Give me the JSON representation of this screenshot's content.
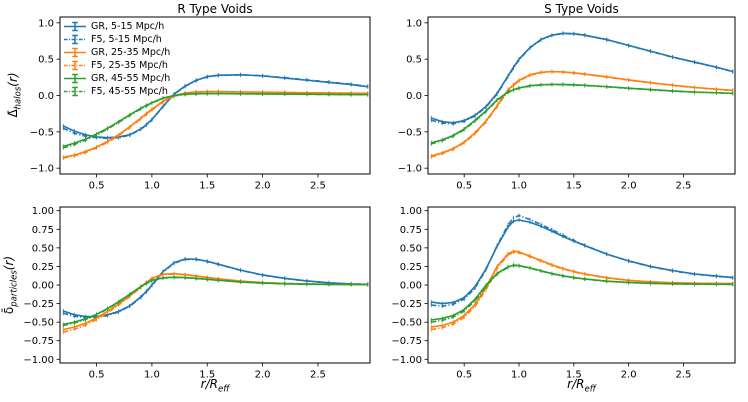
{
  "figure": {
    "titles": {
      "left": "R Type Voids",
      "right": "S Type Voids"
    },
    "colors": {
      "blue": "#1f77b4",
      "orange": "#ff7f0e",
      "green": "#2ca02c",
      "text": "#000000",
      "spine": "#000000"
    },
    "axis_labels": {
      "halos": {
        "prefix": "Δ̄",
        "sub": "halos",
        "suffix": "(r)"
      },
      "particles": {
        "prefix": "δ̄",
        "sub": "particles",
        "suffix": "(r)"
      },
      "x": {
        "prefix": "r/R",
        "sub": "eff"
      }
    },
    "legend": {
      "entries": [
        {
          "label": "GR, 5-15 Mpc/h",
          "color": "#1f77b4",
          "dashed": false
        },
        {
          "label": "F5, 5-15 Mpc/h",
          "color": "#1f77b4",
          "dashed": true
        },
        {
          "label": "GR, 25-35 Mpc/h",
          "color": "#ff7f0e",
          "dashed": false
        },
        {
          "label": "F5, 25-35 Mpc/h",
          "color": "#ff7f0e",
          "dashed": true
        },
        {
          "label": "GR, 45-55 Mpc/h",
          "color": "#2ca02c",
          "dashed": false
        },
        {
          "label": "F5, 45-55 Mpc/h",
          "color": "#2ca02c",
          "dashed": true
        }
      ]
    }
  },
  "chart_data": [
    {
      "id": "r-halos",
      "type": "line",
      "title": "R Type Voids",
      "xlabel": "",
      "ylabel": "Delta-bar_halos(r)",
      "xlim": [
        0.17,
        2.97
      ],
      "ylim": [
        -1.08,
        1.08
      ],
      "xticks": [
        0.5,
        1.0,
        1.5,
        2.0,
        2.5
      ],
      "xtick_labels": [
        "0.5",
        "1.0",
        "1.5",
        "2.0",
        "2.5"
      ],
      "yticks": [
        -1.0,
        -0.5,
        0.0,
        0.5,
        1.0
      ],
      "ytick_labels": [
        "−1.0",
        "−0.5",
        "0.0",
        "0.5",
        "1.0"
      ],
      "x": [
        0.2,
        0.3,
        0.4,
        0.5,
        0.6,
        0.7,
        0.8,
        0.9,
        0.95,
        1.0,
        1.1,
        1.2,
        1.3,
        1.4,
        1.5,
        1.6,
        1.8,
        2.0,
        2.2,
        2.4,
        2.6,
        2.8,
        2.95
      ],
      "series": [
        {
          "name": "GR, 5-15 Mpc/h",
          "color": "#1f77b4",
          "style": "solid",
          "values": [
            -0.42,
            -0.49,
            -0.54,
            -0.57,
            -0.58,
            -0.57,
            -0.54,
            -0.46,
            -0.4,
            -0.33,
            -0.15,
            0.02,
            0.13,
            0.21,
            0.26,
            0.28,
            0.285,
            0.27,
            0.24,
            0.21,
            0.18,
            0.15,
            0.12
          ]
        },
        {
          "name": "F5, 5-15 Mpc/h",
          "color": "#1f77b4",
          "style": "dashdot",
          "values": [
            -0.45,
            -0.52,
            -0.56,
            -0.58,
            -0.59,
            -0.58,
            -0.545,
            -0.465,
            -0.405,
            -0.335,
            -0.155,
            0.015,
            0.125,
            0.205,
            0.255,
            0.275,
            0.285,
            0.272,
            0.245,
            0.215,
            0.185,
            0.155,
            0.125
          ]
        },
        {
          "name": "GR, 25-35 Mpc/h",
          "color": "#ff7f0e",
          "style": "solid",
          "values": [
            -0.85,
            -0.82,
            -0.77,
            -0.71,
            -0.63,
            -0.54,
            -0.43,
            -0.31,
            -0.25,
            -0.19,
            -0.08,
            0.0,
            0.035,
            0.05,
            0.055,
            0.055,
            0.05,
            0.045,
            0.042,
            0.038,
            0.035,
            0.032,
            0.03
          ]
        },
        {
          "name": "F5, 25-35 Mpc/h",
          "color": "#ff7f0e",
          "style": "dashdot",
          "values": [
            -0.86,
            -0.83,
            -0.785,
            -0.72,
            -0.645,
            -0.55,
            -0.44,
            -0.32,
            -0.26,
            -0.2,
            -0.09,
            -0.01,
            0.03,
            0.045,
            0.05,
            0.05,
            0.047,
            0.043,
            0.04,
            0.036,
            0.033,
            0.031,
            0.029
          ]
        },
        {
          "name": "GR, 45-55 Mpc/h",
          "color": "#2ca02c",
          "style": "solid",
          "values": [
            -0.7,
            -0.655,
            -0.6,
            -0.53,
            -0.45,
            -0.36,
            -0.265,
            -0.175,
            -0.135,
            -0.1,
            -0.035,
            0.0,
            0.018,
            0.025,
            0.027,
            0.027,
            0.025,
            0.022,
            0.02,
            0.018,
            0.015,
            0.013,
            0.012
          ]
        },
        {
          "name": "F5, 45-55 Mpc/h",
          "color": "#2ca02c",
          "style": "dashdot",
          "values": [
            -0.72,
            -0.675,
            -0.615,
            -0.545,
            -0.46,
            -0.37,
            -0.275,
            -0.185,
            -0.145,
            -0.105,
            -0.04,
            -0.005,
            0.014,
            0.022,
            0.025,
            0.025,
            0.023,
            0.021,
            0.019,
            0.016,
            0.014,
            0.012,
            0.011
          ]
        }
      ]
    },
    {
      "id": "s-halos",
      "type": "line",
      "title": "S Type Voids",
      "xlabel": "",
      "ylabel": "Delta-bar_halos(r)",
      "xlim": [
        0.17,
        2.97
      ],
      "ylim": [
        -1.08,
        1.08
      ],
      "xticks": [
        0.5,
        1.0,
        1.5,
        2.0,
        2.5
      ],
      "xtick_labels": [
        "0.5",
        "1.0",
        "1.5",
        "2.0",
        "2.5"
      ],
      "yticks": [
        -1.0,
        -0.5,
        0.0,
        0.5,
        1.0
      ],
      "ytick_labels": [
        "−1.0",
        "−0.5",
        "0.0",
        "0.5",
        "1.0"
      ],
      "x": [
        0.2,
        0.3,
        0.4,
        0.5,
        0.6,
        0.7,
        0.8,
        0.9,
        0.95,
        1.0,
        1.1,
        1.2,
        1.3,
        1.4,
        1.5,
        1.6,
        1.8,
        2.0,
        2.2,
        2.4,
        2.6,
        2.8,
        2.95
      ],
      "series": [
        {
          "name": "GR, 5-15 Mpc/h",
          "color": "#1f77b4",
          "style": "solid",
          "values": [
            -0.31,
            -0.36,
            -0.375,
            -0.345,
            -0.27,
            -0.15,
            0.03,
            0.27,
            0.39,
            0.5,
            0.66,
            0.77,
            0.83,
            0.855,
            0.85,
            0.83,
            0.77,
            0.69,
            0.61,
            0.53,
            0.46,
            0.39,
            0.33
          ]
        },
        {
          "name": "F5, 5-15 Mpc/h",
          "color": "#1f77b4",
          "style": "dashdot",
          "values": [
            -0.34,
            -0.38,
            -0.39,
            -0.355,
            -0.28,
            -0.16,
            0.02,
            0.26,
            0.38,
            0.49,
            0.655,
            0.765,
            0.828,
            0.852,
            0.848,
            0.828,
            0.767,
            0.687,
            0.607,
            0.527,
            0.457,
            0.387,
            0.327
          ]
        },
        {
          "name": "GR, 25-35 Mpc/h",
          "color": "#ff7f0e",
          "style": "solid",
          "values": [
            -0.83,
            -0.79,
            -0.73,
            -0.64,
            -0.51,
            -0.35,
            -0.14,
            0.08,
            0.15,
            0.21,
            0.285,
            0.32,
            0.33,
            0.325,
            0.312,
            0.295,
            0.257,
            0.215,
            0.177,
            0.142,
            0.112,
            0.087,
            0.072
          ]
        },
        {
          "name": "F5, 25-35 Mpc/h",
          "color": "#ff7f0e",
          "style": "dashdot",
          "values": [
            -0.845,
            -0.8,
            -0.74,
            -0.65,
            -0.525,
            -0.365,
            -0.155,
            0.065,
            0.138,
            0.2,
            0.278,
            0.315,
            0.327,
            0.322,
            0.309,
            0.292,
            0.254,
            0.212,
            0.174,
            0.139,
            0.109,
            0.084,
            0.069
          ]
        },
        {
          "name": "GR, 45-55 Mpc/h",
          "color": "#2ca02c",
          "style": "solid",
          "values": [
            -0.65,
            -0.61,
            -0.55,
            -0.46,
            -0.34,
            -0.21,
            -0.06,
            0.05,
            0.08,
            0.105,
            0.135,
            0.148,
            0.153,
            0.152,
            0.147,
            0.14,
            0.122,
            0.101,
            0.081,
            0.063,
            0.048,
            0.038,
            0.031
          ]
        },
        {
          "name": "F5, 45-55 Mpc/h",
          "color": "#2ca02c",
          "style": "dashdot",
          "values": [
            -0.665,
            -0.622,
            -0.56,
            -0.47,
            -0.35,
            -0.22,
            -0.07,
            0.042,
            0.073,
            0.098,
            0.13,
            0.144,
            0.15,
            0.149,
            0.144,
            0.138,
            0.119,
            0.098,
            0.078,
            0.06,
            0.046,
            0.036,
            0.029
          ]
        }
      ]
    },
    {
      "id": "r-particles",
      "type": "line",
      "title": "",
      "xlabel": "r/R_eff",
      "ylabel": "delta-bar_particles(r)",
      "xlim": [
        0.17,
        2.97
      ],
      "ylim": [
        -1.05,
        1.05
      ],
      "xticks": [
        0.5,
        1.0,
        1.5,
        2.0,
        2.5
      ],
      "xtick_labels": [
        "0.5",
        "1.0",
        "1.5",
        "2.0",
        "2.5"
      ],
      "yticks": [
        -1.0,
        -0.75,
        -0.5,
        -0.25,
        0.0,
        0.25,
        0.5,
        0.75,
        1.0
      ],
      "ytick_labels": [
        "−1.00",
        "−0.75",
        "−0.50",
        "−0.25",
        "0.00",
        "0.25",
        "0.50",
        "0.75",
        "1.00"
      ],
      "x": [
        0.2,
        0.3,
        0.4,
        0.5,
        0.6,
        0.7,
        0.8,
        0.9,
        0.95,
        1.0,
        1.1,
        1.2,
        1.3,
        1.4,
        1.5,
        1.6,
        1.8,
        2.0,
        2.2,
        2.4,
        2.6,
        2.8,
        2.95
      ],
      "series": [
        {
          "name": "GR, 5-15 Mpc/h",
          "color": "#1f77b4",
          "style": "solid",
          "values": [
            -0.35,
            -0.4,
            -0.425,
            -0.425,
            -0.4,
            -0.355,
            -0.28,
            -0.16,
            -0.085,
            0.0,
            0.18,
            0.3,
            0.35,
            0.348,
            0.32,
            0.28,
            0.2,
            0.135,
            0.09,
            0.055,
            0.03,
            0.015,
            0.01
          ]
        },
        {
          "name": "F5, 5-15 Mpc/h",
          "color": "#1f77b4",
          "style": "dashdot",
          "values": [
            -0.38,
            -0.42,
            -0.44,
            -0.437,
            -0.41,
            -0.362,
            -0.287,
            -0.168,
            -0.093,
            -0.007,
            0.174,
            0.293,
            0.344,
            0.343,
            0.316,
            0.277,
            0.198,
            0.133,
            0.088,
            0.053,
            0.029,
            0.014,
            0.009
          ]
        },
        {
          "name": "GR, 25-35 Mpc/h",
          "color": "#ff7f0e",
          "style": "solid",
          "values": [
            -0.6,
            -0.565,
            -0.515,
            -0.445,
            -0.355,
            -0.255,
            -0.145,
            -0.025,
            0.035,
            0.09,
            0.145,
            0.152,
            0.14,
            0.122,
            0.102,
            0.084,
            0.053,
            0.033,
            0.021,
            0.014,
            0.01,
            0.008,
            0.007
          ]
        },
        {
          "name": "F5, 25-35 Mpc/h",
          "color": "#ff7f0e",
          "style": "dashdot",
          "values": [
            -0.635,
            -0.595,
            -0.54,
            -0.465,
            -0.372,
            -0.268,
            -0.155,
            -0.034,
            0.028,
            0.084,
            0.14,
            0.148,
            0.137,
            0.119,
            0.099,
            0.081,
            0.051,
            0.031,
            0.02,
            0.013,
            0.009,
            0.008,
            0.007
          ]
        },
        {
          "name": "GR, 45-55 Mpc/h",
          "color": "#2ca02c",
          "style": "solid",
          "values": [
            -0.53,
            -0.5,
            -0.455,
            -0.395,
            -0.315,
            -0.225,
            -0.125,
            -0.02,
            0.025,
            0.062,
            0.097,
            0.105,
            0.1,
            0.09,
            0.077,
            0.064,
            0.041,
            0.026,
            0.017,
            0.011,
            0.008,
            0.007,
            0.006
          ]
        },
        {
          "name": "F5, 45-55 Mpc/h",
          "color": "#2ca02c",
          "style": "dashdot",
          "values": [
            -0.545,
            -0.512,
            -0.465,
            -0.403,
            -0.322,
            -0.23,
            -0.13,
            -0.026,
            0.02,
            0.057,
            0.093,
            0.102,
            0.097,
            0.087,
            0.075,
            0.062,
            0.04,
            0.025,
            0.016,
            0.01,
            0.008,
            0.007,
            0.006
          ]
        }
      ]
    },
    {
      "id": "s-particles",
      "type": "line",
      "title": "",
      "xlabel": "r/R_eff",
      "ylabel": "delta-bar_particles(r)",
      "xlim": [
        0.17,
        2.97
      ],
      "ylim": [
        -1.05,
        1.05
      ],
      "xticks": [
        0.5,
        1.0,
        1.5,
        2.0,
        2.5
      ],
      "xtick_labels": [
        "0.5",
        "1.0",
        "1.5",
        "2.0",
        "2.5"
      ],
      "yticks": [
        -1.0,
        -0.75,
        -0.5,
        -0.25,
        0.0,
        0.25,
        0.5,
        0.75,
        1.0
      ],
      "ytick_labels": [
        "−1.00",
        "−0.75",
        "−0.50",
        "−0.25",
        "0.00",
        "0.25",
        "0.50",
        "0.75",
        "1.00"
      ],
      "x": [
        0.2,
        0.3,
        0.4,
        0.5,
        0.6,
        0.7,
        0.8,
        0.9,
        0.95,
        1.0,
        1.1,
        1.2,
        1.3,
        1.4,
        1.5,
        1.6,
        1.8,
        2.0,
        2.2,
        2.4,
        2.6,
        2.8,
        2.95
      ],
      "series": [
        {
          "name": "GR, 5-15 Mpc/h",
          "color": "#1f77b4",
          "style": "solid",
          "values": [
            -0.23,
            -0.25,
            -0.235,
            -0.17,
            -0.02,
            0.22,
            0.52,
            0.78,
            0.86,
            0.875,
            0.845,
            0.79,
            0.725,
            0.655,
            0.59,
            0.53,
            0.415,
            0.325,
            0.25,
            0.195,
            0.15,
            0.12,
            0.1
          ]
        },
        {
          "name": "F5, 5-15 Mpc/h",
          "color": "#1f77b4",
          "style": "dashdot",
          "values": [
            -0.27,
            -0.285,
            -0.26,
            -0.19,
            -0.04,
            0.21,
            0.53,
            0.81,
            0.905,
            0.935,
            0.88,
            0.815,
            0.745,
            0.672,
            0.6,
            0.535,
            0.416,
            0.322,
            0.247,
            0.19,
            0.146,
            0.116,
            0.098
          ]
        },
        {
          "name": "GR, 25-35 Mpc/h",
          "color": "#ff7f0e",
          "style": "solid",
          "values": [
            -0.565,
            -0.545,
            -0.5,
            -0.41,
            -0.26,
            -0.03,
            0.25,
            0.42,
            0.455,
            0.445,
            0.39,
            0.33,
            0.272,
            0.222,
            0.182,
            0.15,
            0.098,
            0.063,
            0.043,
            0.031,
            0.025,
            0.021,
            0.019
          ]
        },
        {
          "name": "F5, 25-35 Mpc/h",
          "color": "#ff7f0e",
          "style": "dashdot",
          "values": [
            -0.6,
            -0.575,
            -0.525,
            -0.435,
            -0.285,
            -0.06,
            0.225,
            0.405,
            0.443,
            0.435,
            0.382,
            0.322,
            0.265,
            0.216,
            0.177,
            0.145,
            0.094,
            0.06,
            0.041,
            0.029,
            0.023,
            0.02,
            0.018
          ]
        },
        {
          "name": "GR, 45-55 Mpc/h",
          "color": "#2ca02c",
          "style": "solid",
          "values": [
            -0.47,
            -0.45,
            -0.41,
            -0.33,
            -0.19,
            0.0,
            0.155,
            0.245,
            0.268,
            0.262,
            0.23,
            0.192,
            0.154,
            0.124,
            0.1,
            0.081,
            0.052,
            0.034,
            0.023,
            0.016,
            0.012,
            0.01,
            0.009
          ]
        },
        {
          "name": "F5, 45-55 Mpc/h",
          "color": "#2ca02c",
          "style": "dashdot",
          "values": [
            -0.5,
            -0.477,
            -0.432,
            -0.35,
            -0.21,
            -0.018,
            0.145,
            0.237,
            0.262,
            0.257,
            0.226,
            0.188,
            0.15,
            0.12,
            0.097,
            0.078,
            0.05,
            0.032,
            0.022,
            0.015,
            0.011,
            0.009,
            0.008
          ]
        }
      ]
    }
  ]
}
